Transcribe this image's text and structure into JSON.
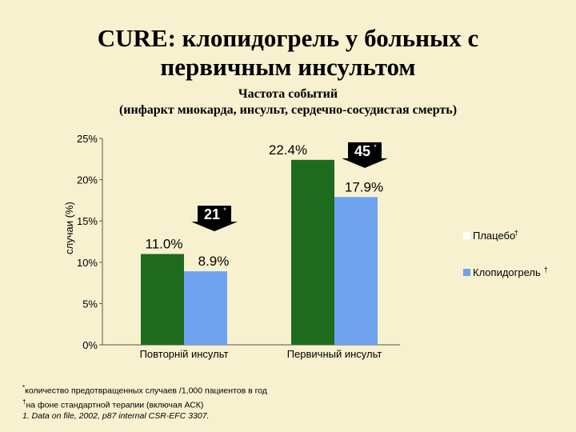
{
  "title_line1": "CURE: клопидогрель у больных с",
  "title_line2": "первичным инсультом",
  "subtitle_line1": "Частота событий",
  "subtitle_line2": "(инфаркт миокарда, инсульт, сердечно-сосудистая смерть)",
  "chart_data": {
    "type": "bar",
    "ylabel": "случаи (%)",
    "ylim": [
      0,
      25
    ],
    "yticks": [
      "0%",
      "5%",
      "10%",
      "15%",
      "20%",
      "25%"
    ],
    "categories": [
      "Повторній инсульт",
      "Первичный инсульт"
    ],
    "series": [
      {
        "name": "Плацебо",
        "mark": "†",
        "color": "#1e6b1e",
        "values": [
          11.0,
          22.4
        ],
        "labels": [
          "11.0%",
          "22.4%"
        ]
      },
      {
        "name": "Клопидогрель",
        "mark": "†",
        "color": "#6fa3f0",
        "values": [
          8.9,
          17.9
        ],
        "labels": [
          "8.9%",
          "17.9%"
        ]
      }
    ],
    "annotations": [
      {
        "category": 0,
        "text": "21",
        "mark": "*"
      },
      {
        "category": 1,
        "text": "45",
        "mark": "*"
      }
    ],
    "legend_position": "right"
  },
  "footnotes": {
    "line1_mark": "*",
    "line1": "количество предотвращенных случаев /1,000 пациентов в год",
    "line2_mark": "†",
    "line2": "на фоне стандартной терапии (включая АСК)",
    "line3": "1. Data on file, 2002, p87 internal CSR-EFC 3307."
  }
}
